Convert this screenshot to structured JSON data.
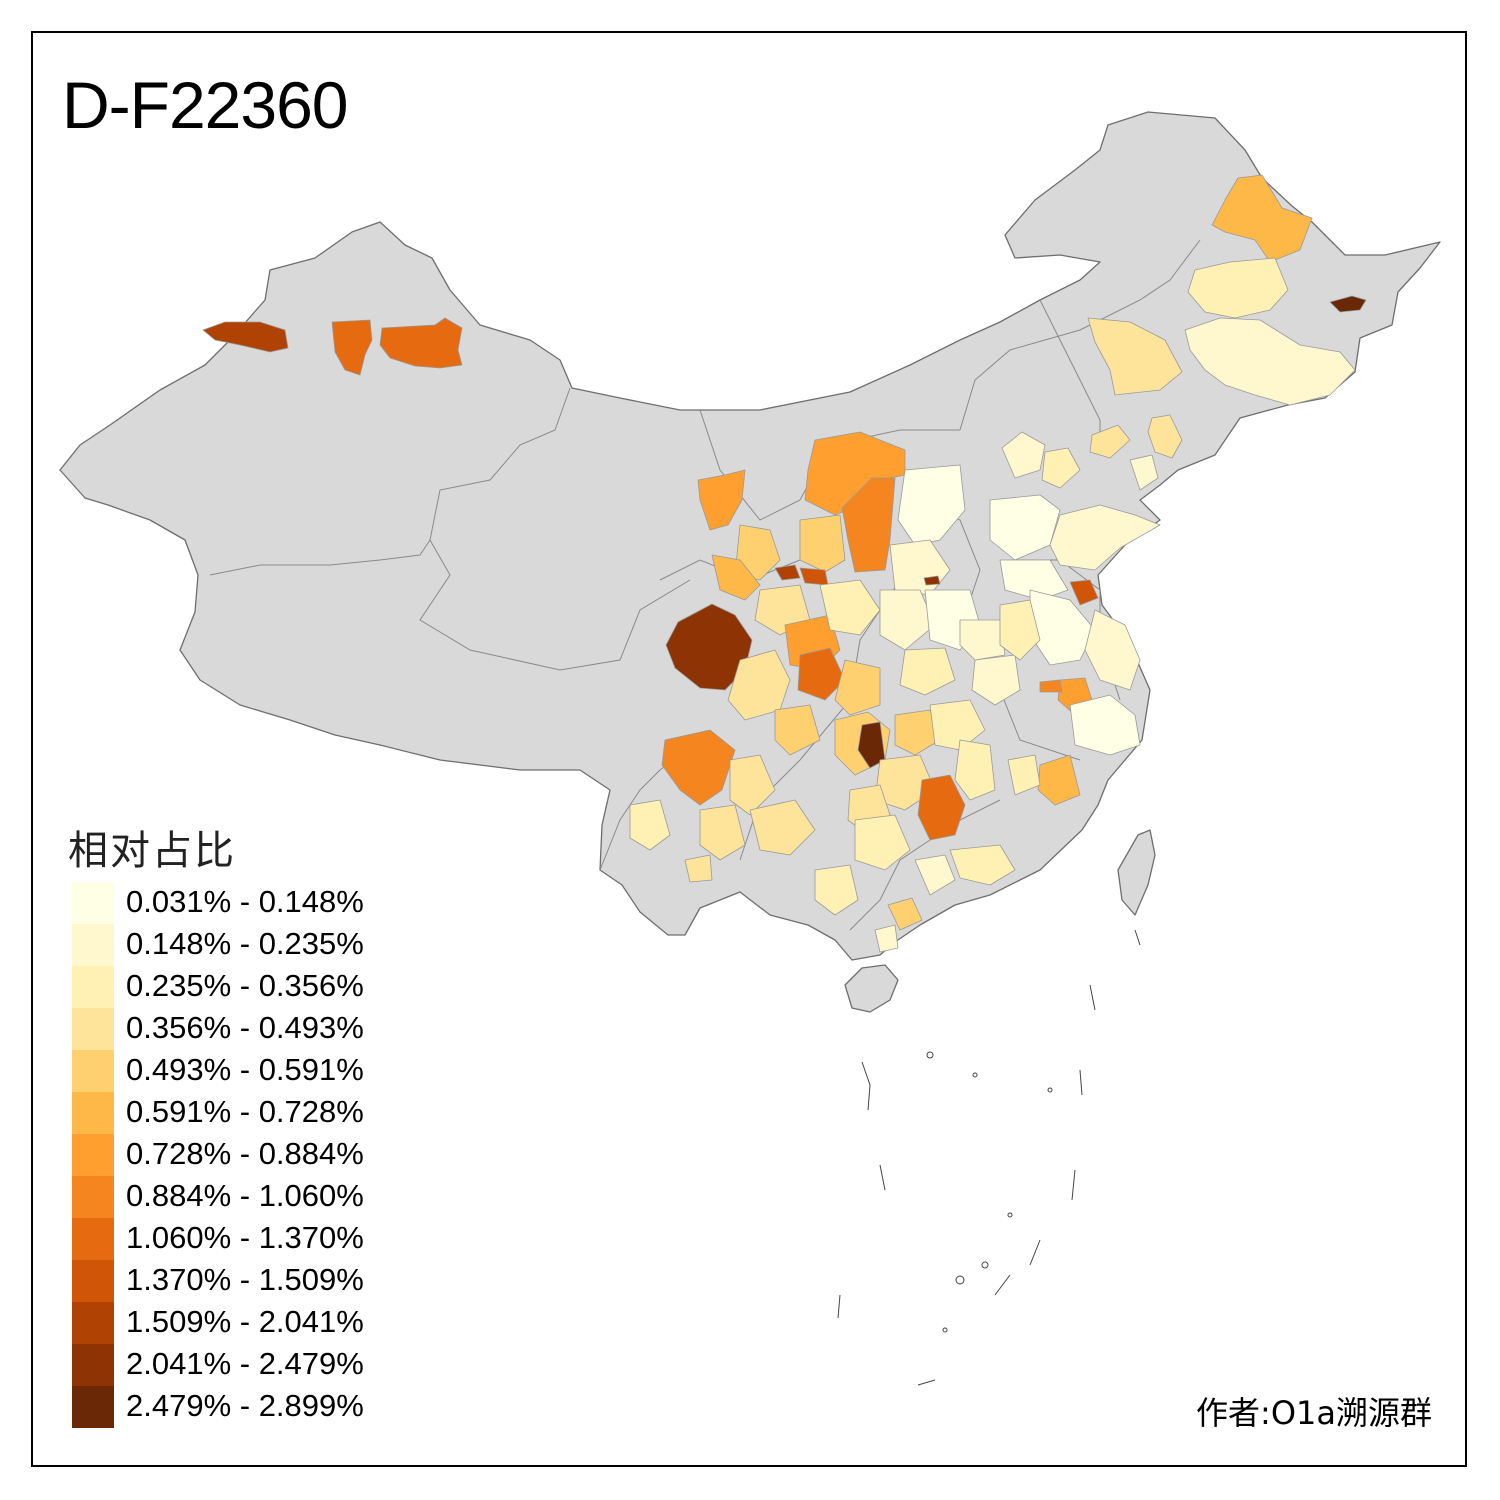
{
  "title": "D-F22360",
  "legend": {
    "title": "相对占比",
    "items": [
      {
        "label": "0.031% - 0.148%",
        "color": "#ffffe5"
      },
      {
        "label": "0.148% - 0.235%",
        "color": "#fff8cf"
      },
      {
        "label": "0.235% - 0.356%",
        "color": "#fff0b4"
      },
      {
        "label": "0.356% - 0.493%",
        "color": "#fee39a"
      },
      {
        "label": "0.493% - 0.591%",
        "color": "#fed070"
      },
      {
        "label": "0.591% - 0.728%",
        "color": "#feb847"
      },
      {
        "label": "0.728% - 0.884%",
        "color": "#fe9f2f"
      },
      {
        "label": "0.884% - 1.060%",
        "color": "#f4851f"
      },
      {
        "label": "1.060% - 1.370%",
        "color": "#e66b10"
      },
      {
        "label": "1.370% - 1.509%",
        "color": "#d05506"
      },
      {
        "label": "1.509% - 2.041%",
        "color": "#b04304"
      },
      {
        "label": "2.041% - 2.479%",
        "color": "#8d3304"
      },
      {
        "label": "2.479% - 2.899%",
        "color": "#6a2806"
      }
    ]
  },
  "author": "作者:O1a溯源群",
  "colors": {
    "base_land": "#d9d9d9",
    "border": "#7a7a7a",
    "frame": "#000000"
  }
}
